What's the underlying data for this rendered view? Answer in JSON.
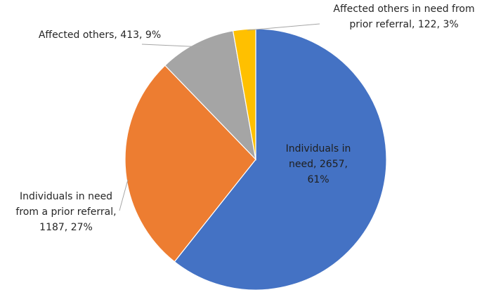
{
  "chart_data": {
    "type": "pie",
    "start_angle_deg": 0,
    "direction": "clockwise",
    "slices": [
      {
        "label": "Individuals in need",
        "value": 2657,
        "percent": 61,
        "color": "#4472C4",
        "label_lines": [
          "Individuals in",
          "need, 2657,",
          "61%"
        ]
      },
      {
        "label": "Individuals in need from a prior referral",
        "value": 1187,
        "percent": 27,
        "color": "#ED7D31",
        "label_lines": [
          "Individuals in need",
          "from a prior referral,",
          "1187, 27%"
        ]
      },
      {
        "label": "Affected others",
        "value": 413,
        "percent": 9,
        "color": "#A5A5A5",
        "label_lines": [
          "Affected others, 413, 9%"
        ]
      },
      {
        "label": "Affected others in need from prior referral",
        "value": 122,
        "percent": 3,
        "color": "#FFC000",
        "label_lines": [
          "Affected others in need from",
          "prior referral, 122, 3%"
        ]
      }
    ]
  }
}
